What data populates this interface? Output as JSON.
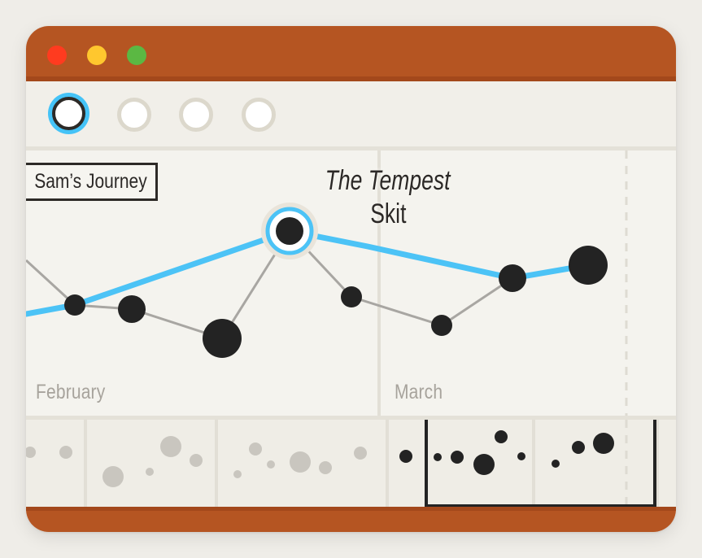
{
  "window": {
    "controls": [
      "close",
      "minimize",
      "maximize"
    ],
    "colors": {
      "frame": "#b55522",
      "close": "#ff3b1f",
      "minimize": "#ffc72e",
      "maximize": "#5bb843"
    }
  },
  "toolbar": {
    "view_buttons": [
      {
        "name": "view-1",
        "active": true
      },
      {
        "name": "view-2",
        "active": false
      },
      {
        "name": "view-3",
        "active": false
      },
      {
        "name": "view-4",
        "active": false
      }
    ],
    "accent": "#45c3f7"
  },
  "timeline": {
    "journey_label": "Sam’s Journey",
    "selected_event": {
      "title": "The Tempest",
      "subtitle": "Skit"
    },
    "months": [
      "February",
      "March"
    ],
    "colors": {
      "path": "#4cc3f6",
      "events": "#232323",
      "links": "#a8a6a2"
    },
    "events": [
      {
        "size": "small"
      },
      {
        "size": "medium"
      },
      {
        "size": "large"
      },
      {
        "size": "medium",
        "selected": true
      },
      {
        "size": "small"
      },
      {
        "size": "small"
      },
      {
        "size": "medium"
      },
      {
        "size": "large"
      }
    ]
  },
  "overview": {
    "selection": "current-window"
  }
}
